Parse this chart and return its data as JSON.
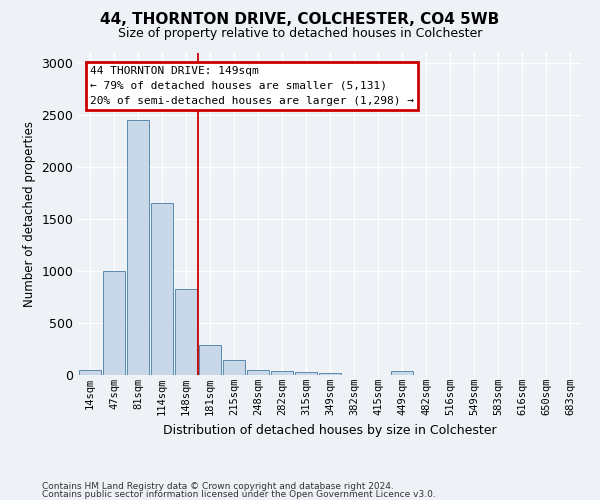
{
  "title1": "44, THORNTON DRIVE, COLCHESTER, CO4 5WB",
  "title2": "Size of property relative to detached houses in Colchester",
  "xlabel": "Distribution of detached houses by size in Colchester",
  "ylabel": "Number of detached properties",
  "categories": [
    "14sqm",
    "47sqm",
    "81sqm",
    "114sqm",
    "148sqm",
    "181sqm",
    "215sqm",
    "248sqm",
    "282sqm",
    "315sqm",
    "349sqm",
    "382sqm",
    "415sqm",
    "449sqm",
    "482sqm",
    "516sqm",
    "549sqm",
    "583sqm",
    "616sqm",
    "650sqm",
    "683sqm"
  ],
  "values": [
    50,
    1000,
    2450,
    1650,
    830,
    290,
    145,
    50,
    40,
    30,
    20,
    0,
    0,
    35,
    0,
    0,
    0,
    0,
    0,
    0,
    0
  ],
  "bar_color": "#c8d8e8",
  "bar_edge_color": "#5a8ab0",
  "annotation_lines": [
    "44 THORNTON DRIVE: 149sqm",
    "← 79% of detached houses are smaller (5,131)",
    "20% of semi-detached houses are larger (1,298) →"
  ],
  "annotation_box_color": "#ffffff",
  "annotation_box_edge": "#cc0000",
  "footer1": "Contains HM Land Registry data © Crown copyright and database right 2024.",
  "footer2": "Contains public sector information licensed under the Open Government Licence v3.0.",
  "ylim": [
    0,
    3100
  ],
  "bg_color": "#eef2f7",
  "title1_fontsize": 11,
  "title2_fontsize": 9,
  "vline_x": 4.48,
  "vline_color": "#cc0000"
}
